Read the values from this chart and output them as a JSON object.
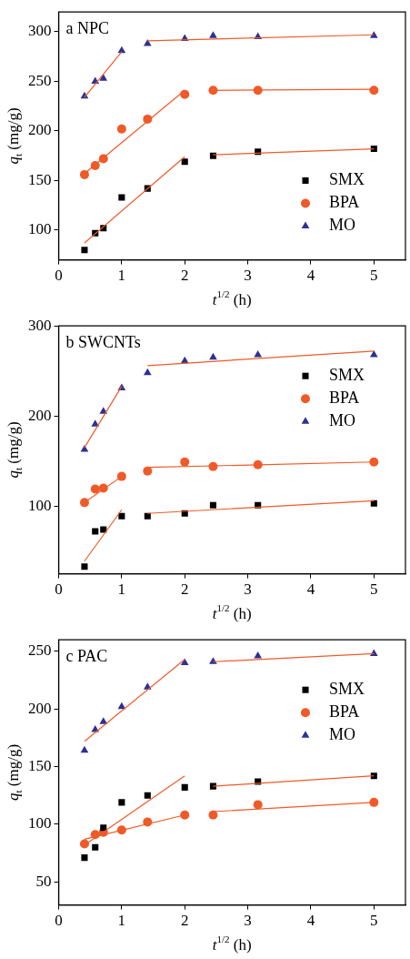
{
  "chart_data": [
    {
      "type": "scatter",
      "title": "a NPC",
      "xlabel": "t$^{1/2}$ (h)",
      "ylabel": "q$_{t}$ (mg/g)",
      "x": [
        0.41,
        0.58,
        0.71,
        1,
        1.41,
        2,
        2.45,
        3.16,
        5
      ],
      "xlim": [
        0,
        5.5
      ],
      "xticks": [
        0,
        1,
        2,
        3,
        4,
        5
      ],
      "ylim": [
        70,
        320
      ],
      "yticks": [
        100,
        150,
        200,
        250,
        300
      ],
      "grid": false,
      "legend": "right",
      "series": [
        {
          "name": "SMX",
          "color": "#000000",
          "marker": "square",
          "values": [
            80,
            97,
            102,
            133,
            142,
            169,
            175,
            179,
            182
          ]
        },
        {
          "name": "BPA",
          "color": "#f05a28",
          "marker": "circle",
          "values": [
            156,
            165,
            172,
            202,
            212,
            237,
            241,
            241,
            241
          ]
        },
        {
          "name": "MO",
          "color": "#2e3192",
          "marker": "triangle",
          "values": [
            235,
            250,
            253,
            281,
            288,
            293,
            296,
            295,
            296
          ]
        },
        {
          "type": "line",
          "color": "#f05a28",
          "marker": "none",
          "x": [
            0.41,
            2
          ],
          "values": [
            87,
            174
          ]
        },
        {
          "type": "line",
          "color": "#f05a28",
          "marker": "none",
          "x": [
            2.45,
            5
          ],
          "values": [
            176,
            182
          ]
        },
        {
          "type": "line",
          "color": "#f05a28",
          "marker": "none",
          "x": [
            0.41,
            2
          ],
          "values": [
            157,
            241
          ]
        },
        {
          "type": "line",
          "color": "#f05a28",
          "marker": "none",
          "x": [
            2.45,
            5
          ],
          "values": [
            241,
            242
          ]
        },
        {
          "type": "line",
          "color": "#f05a28",
          "marker": "none",
          "x": [
            0.41,
            1
          ],
          "values": [
            234,
            280
          ]
        },
        {
          "type": "line",
          "color": "#f05a28",
          "marker": "none",
          "x": [
            1.41,
            5
          ],
          "values": [
            291,
            297
          ]
        }
      ]
    },
    {
      "type": "scatter",
      "title": "b SWCNTs",
      "xlabel": "t$^{1/2}$ (h)",
      "ylabel": "q$_{t}$ (mg/g)",
      "x": [
        0.41,
        0.58,
        0.71,
        1,
        1.41,
        2,
        2.45,
        3.16,
        5
      ],
      "xlim": [
        0,
        5.5
      ],
      "xticks": [
        0,
        1,
        2,
        3,
        4,
        5
      ],
      "ylim": [
        25,
        300
      ],
      "yticks": [
        100,
        200,
        300
      ],
      "grid": false,
      "legend": "top right",
      "series": [
        {
          "name": "SMX",
          "color": "#000000",
          "marker": "square",
          "values": [
            33,
            72,
            74,
            89,
            89,
            92,
            101,
            101,
            103
          ]
        },
        {
          "name": "BPA",
          "color": "#f05a28",
          "marker": "circle",
          "values": [
            104,
            119,
            120,
            133,
            139,
            149,
            144,
            146,
            149
          ]
        },
        {
          "name": "MO",
          "color": "#2e3192",
          "marker": "triangle",
          "values": [
            163,
            191,
            205,
            231,
            248,
            261,
            265,
            268,
            268
          ]
        },
        {
          "type": "line",
          "color": "#f05a28",
          "marker": "none",
          "x": [
            0.41,
            1
          ],
          "values": [
            39,
            96
          ]
        },
        {
          "type": "line",
          "color": "#f05a28",
          "marker": "none",
          "x": [
            1.41,
            5
          ],
          "values": [
            92,
            106
          ]
        },
        {
          "type": "line",
          "color": "#f05a28",
          "marker": "none",
          "x": [
            0.41,
            1
          ],
          "values": [
            104,
            133
          ]
        },
        {
          "type": "line",
          "color": "#f05a28",
          "marker": "none",
          "x": [
            1.41,
            5
          ],
          "values": [
            143,
            149
          ]
        },
        {
          "type": "line",
          "color": "#f05a28",
          "marker": "none",
          "x": [
            0.41,
            1
          ],
          "values": [
            165,
            233
          ]
        },
        {
          "type": "line",
          "color": "#f05a28",
          "marker": "none",
          "x": [
            1.41,
            5
          ],
          "values": [
            256,
            272
          ]
        }
      ]
    },
    {
      "type": "scatter",
      "title": "c PAC",
      "xlabel": "t$^{1/2}$ (h)",
      "ylabel": "q$_{t}$ (mg/g)",
      "x": [
        0.41,
        0.58,
        0.71,
        1,
        1.41,
        2,
        2.45,
        3.16,
        5
      ],
      "xlim": [
        0,
        5.5
      ],
      "xticks": [
        0,
        1,
        2,
        3,
        4,
        5
      ],
      "ylim": [
        30,
        260
      ],
      "yticks": [
        50,
        100,
        150,
        200,
        250
      ],
      "grid": false,
      "legend": "top right",
      "series": [
        {
          "name": "SMX",
          "color": "#000000",
          "marker": "square",
          "values": [
            71,
            80,
            97,
            119,
            125,
            132,
            133,
            137,
            142
          ]
        },
        {
          "name": "BPA",
          "color": "#f05a28",
          "marker": "circle",
          "values": [
            83,
            91,
            93,
            95,
            102,
            108,
            108,
            117,
            119
          ]
        },
        {
          "name": "MO",
          "color": "#2e3192",
          "marker": "triangle",
          "values": [
            164,
            182,
            189,
            202,
            219,
            240,
            241,
            246,
            248
          ]
        },
        {
          "type": "line",
          "color": "#f05a28",
          "marker": "none",
          "x": [
            0.41,
            2
          ],
          "values": [
            82,
            142
          ]
        },
        {
          "type": "line",
          "color": "#f05a28",
          "marker": "none",
          "x": [
            2.45,
            5
          ],
          "values": [
            133,
            142
          ]
        },
        {
          "type": "line",
          "color": "#f05a28",
          "marker": "none",
          "x": [
            0.41,
            2
          ],
          "values": [
            87,
            108
          ]
        },
        {
          "type": "line",
          "color": "#f05a28",
          "marker": "none",
          "x": [
            2.45,
            5
          ],
          "values": [
            111,
            119
          ]
        },
        {
          "type": "line",
          "color": "#f05a28",
          "marker": "none",
          "x": [
            0.41,
            2
          ],
          "values": [
            172,
            243
          ]
        },
        {
          "type": "line",
          "color": "#f05a28",
          "marker": "none",
          "x": [
            2.45,
            5
          ],
          "values": [
            241,
            248
          ]
        }
      ]
    }
  ]
}
